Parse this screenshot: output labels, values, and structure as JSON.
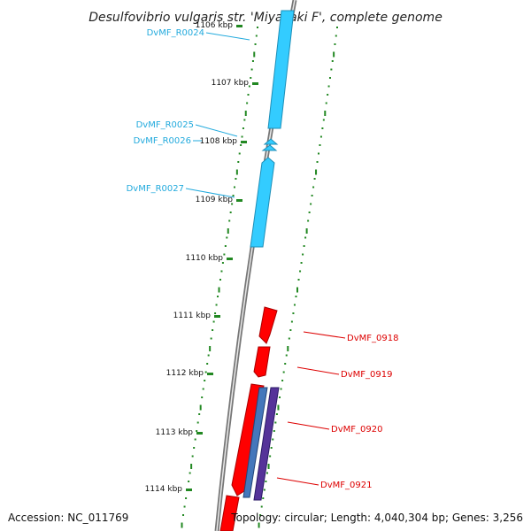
{
  "title": "Desulfovibrio vulgaris str. 'Miyazaki F', complete genome",
  "accession": "Accession: NC_011769",
  "topology": "Topology: circular; Length: 4,040,304 bp; Genes: 3,256",
  "colors": {
    "forward_gene": "#33ccff",
    "reverse_gene": "#ff0000",
    "other_feature": "#553399",
    "backbone": "#777777",
    "gc_dots": "#228822",
    "forward_label": "#22aadd",
    "reverse_label": "#dd0000"
  },
  "ticks": [
    {
      "label": "1106 kbp"
    },
    {
      "label": "1107 kbp"
    },
    {
      "label": "1108 kbp"
    },
    {
      "label": "1109 kbp"
    },
    {
      "label": "1110 kbp"
    },
    {
      "label": "1111 kbp"
    },
    {
      "label": "1112 kbp"
    },
    {
      "label": "1113 kbp"
    },
    {
      "label": "1114 kbp"
    }
  ],
  "forward_labels": [
    {
      "name": "DvMF_R0024"
    },
    {
      "name": "DvMF_R0025"
    },
    {
      "name": "DvMF_R0026"
    },
    {
      "name": "DvMF_R0027"
    }
  ],
  "reverse_labels": [
    {
      "name": "DvMF_0918"
    },
    {
      "name": "DvMF_0919"
    },
    {
      "name": "DvMF_0920"
    },
    {
      "name": "DvMF_0921"
    }
  ]
}
